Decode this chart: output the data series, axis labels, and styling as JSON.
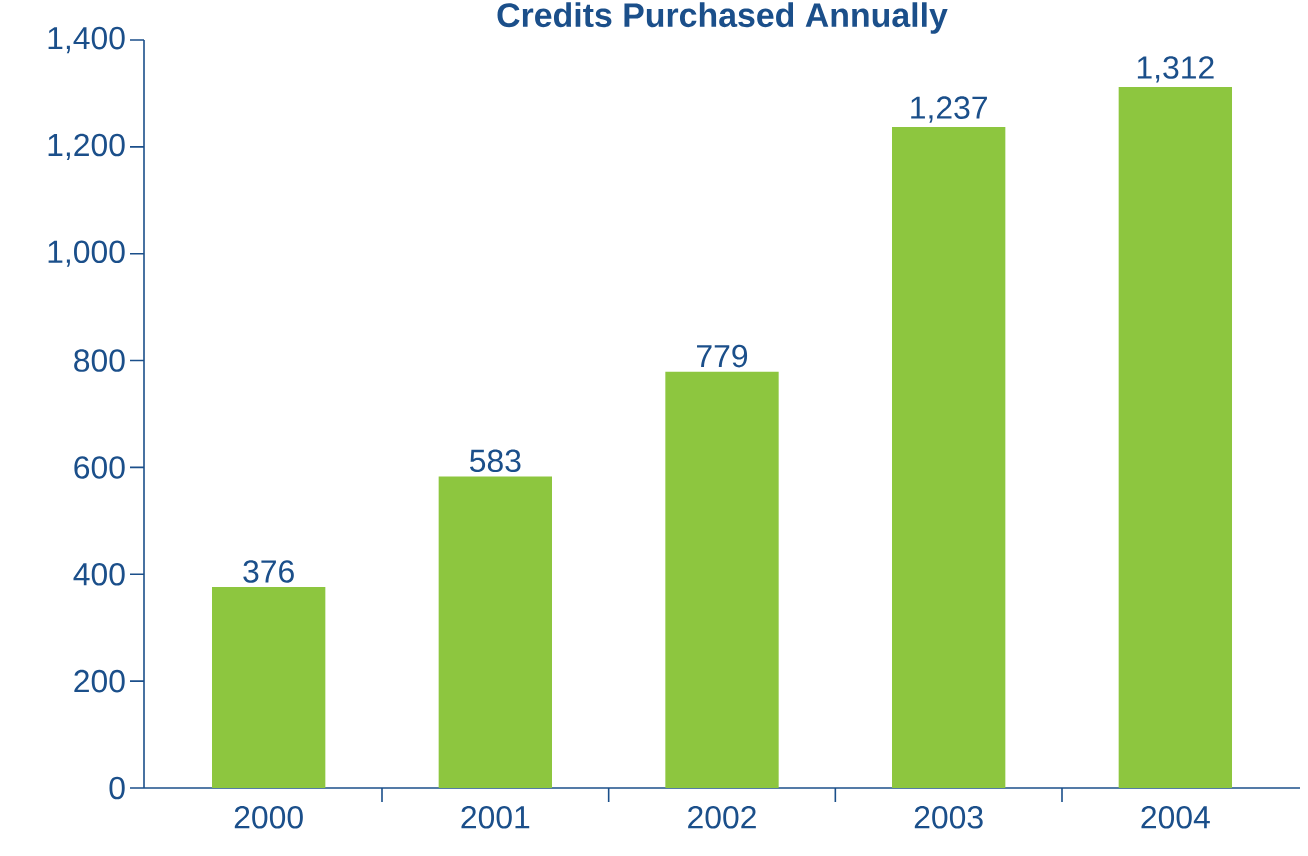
{
  "chart_data": {
    "type": "bar",
    "title": "Credits Purchased Annually",
    "categories": [
      "2000",
      "2001",
      "2002",
      "2003",
      "2004"
    ],
    "values": [
      376,
      583,
      779,
      1237,
      1312
    ],
    "value_labels": [
      "376",
      "583",
      "779",
      "1,237",
      "1,312"
    ],
    "color": "#8dc63f",
    "ylim": [
      0,
      1400
    ],
    "yticks": [
      0,
      200,
      400,
      600,
      800,
      {
        "value": 1000,
        "label": "1,000"
      },
      {
        "value": 1200,
        "label": "1,200"
      },
      {
        "value": 1400,
        "label": "1,400"
      }
    ]
  }
}
